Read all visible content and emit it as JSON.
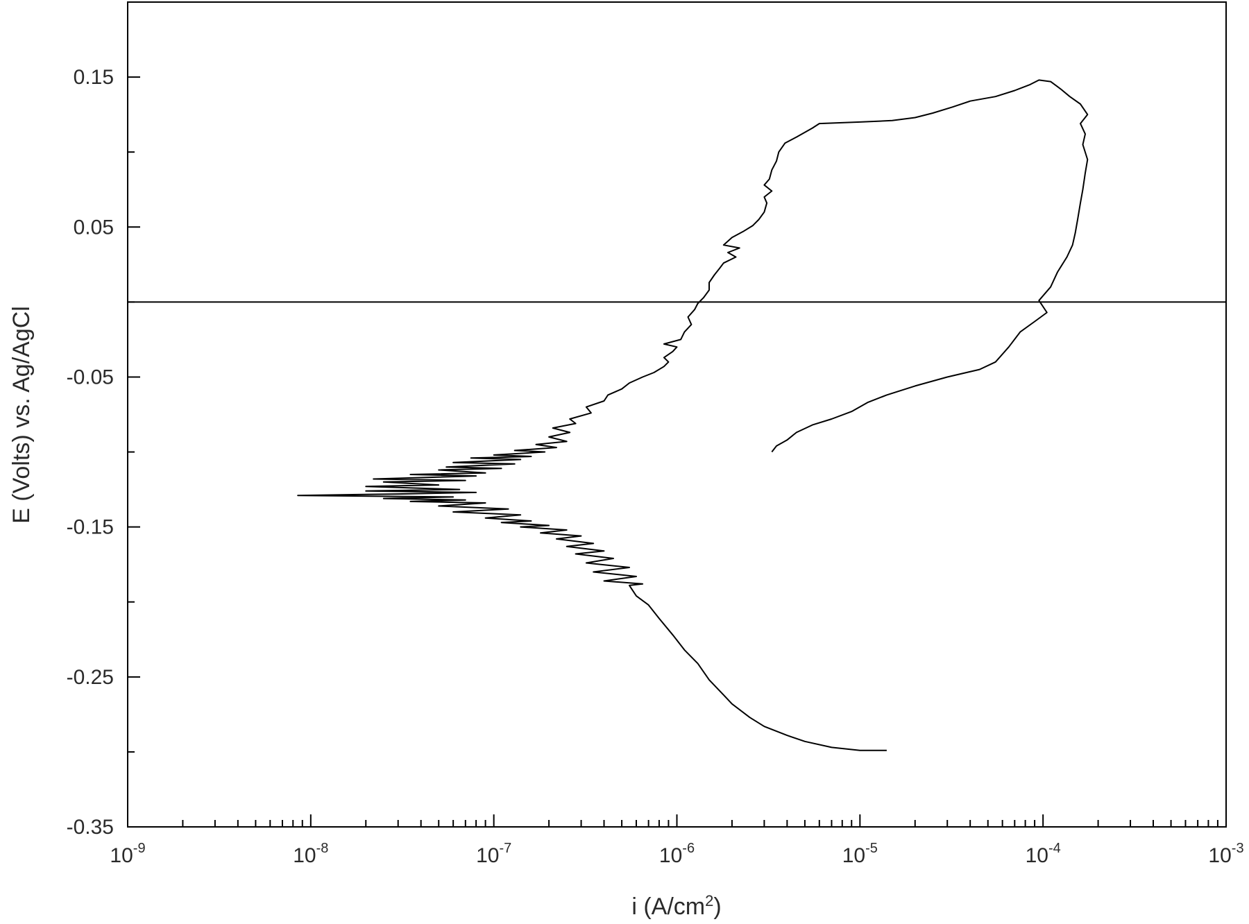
{
  "chart_data": {
    "type": "line",
    "title": "",
    "xlabel": "i (A/cm²)",
    "ylabel": "E (Volts) vs. Ag/AgCl",
    "x_scale": "log",
    "xlim": [
      1e-09,
      0.001
    ],
    "ylim": [
      -0.35,
      0.2
    ],
    "grid": false,
    "legend": "none",
    "x_tick_labels": [
      {
        "value": 1e-09,
        "base": "10",
        "exp": "-9"
      },
      {
        "value": 1e-08,
        "base": "10",
        "exp": "-8"
      },
      {
        "value": 1e-07,
        "base": "10",
        "exp": "-7"
      },
      {
        "value": 1e-06,
        "base": "10",
        "exp": "-6"
      },
      {
        "value": 1e-05,
        "base": "10",
        "exp": "-5"
      },
      {
        "value": 0.0001,
        "base": "10",
        "exp": "-4"
      },
      {
        "value": 0.001,
        "base": "10",
        "exp": "-3"
      }
    ],
    "y_tick_labels": [
      {
        "value": 0.15,
        "label": "0.15"
      },
      {
        "value": 0.05,
        "label": "0.05"
      },
      {
        "value": -0.05,
        "label": "-0.05"
      },
      {
        "value": -0.15,
        "label": "-0.15"
      },
      {
        "value": -0.25,
        "label": "-0.25"
      },
      {
        "value": -0.35,
        "label": "-0.35"
      }
    ],
    "y_minor_ticks": [
      0.1,
      0.0,
      -0.1,
      -0.2,
      -0.3
    ],
    "reference_lines": [
      {
        "axis": "y",
        "value": 0.0
      }
    ],
    "series": [
      {
        "points": [
          [
            1.4e-05,
            -0.299
          ],
          [
            1e-05,
            -0.299
          ],
          [
            7e-06,
            -0.297
          ],
          [
            5e-06,
            -0.293
          ],
          [
            4e-06,
            -0.289
          ],
          [
            3e-06,
            -0.283
          ],
          [
            2.5e-06,
            -0.277
          ],
          [
            2e-06,
            -0.268
          ],
          [
            1.8e-06,
            -0.262
          ],
          [
            1.5e-06,
            -0.252
          ],
          [
            1.3e-06,
            -0.241
          ],
          [
            1.1e-06,
            -0.232
          ],
          [
            9.5e-07,
            -0.222
          ],
          [
            8e-07,
            -0.211
          ],
          [
            7e-07,
            -0.202
          ],
          [
            6e-07,
            -0.196
          ],
          [
            5.5e-07,
            -0.189
          ],
          [
            6.5e-07,
            -0.188
          ],
          [
            4e-07,
            -0.186
          ],
          [
            6e-07,
            -0.183
          ],
          [
            3.5e-07,
            -0.18
          ],
          [
            5.5e-07,
            -0.177
          ],
          [
            3.2e-07,
            -0.174
          ],
          [
            4.5e-07,
            -0.171
          ],
          [
            2.8e-07,
            -0.168
          ],
          [
            4e-07,
            -0.166
          ],
          [
            2.5e-07,
            -0.163
          ],
          [
            3.5e-07,
            -0.161
          ],
          [
            2.2e-07,
            -0.158
          ],
          [
            3e-07,
            -0.156
          ],
          [
            1.8e-07,
            -0.154
          ],
          [
            2.5e-07,
            -0.152
          ],
          [
            1.4e-07,
            -0.15
          ],
          [
            2e-07,
            -0.149
          ],
          [
            1.1e-07,
            -0.147
          ],
          [
            1.6e-07,
            -0.146
          ],
          [
            9e-08,
            -0.144
          ],
          [
            1.4e-07,
            -0.142
          ],
          [
            6e-08,
            -0.14
          ],
          [
            1.2e-07,
            -0.138
          ],
          [
            5e-08,
            -0.136
          ],
          [
            9e-08,
            -0.134
          ],
          [
            3.5e-08,
            -0.133
          ],
          [
            7e-08,
            -0.132
          ],
          [
            2.5e-08,
            -0.131
          ],
          [
            6e-08,
            -0.13
          ],
          [
            8.5e-09,
            -0.129
          ],
          [
            3e-08,
            -0.128
          ],
          [
            8e-08,
            -0.127
          ],
          [
            2e-08,
            -0.126
          ],
          [
            6.5e-08,
            -0.125
          ],
          [
            2e-08,
            -0.123
          ],
          [
            5e-08,
            -0.122
          ],
          [
            2.5e-08,
            -0.12
          ],
          [
            7e-08,
            -0.119
          ],
          [
            2.2e-08,
            -0.118
          ],
          [
            8e-08,
            -0.116
          ],
          [
            3.5e-08,
            -0.115
          ],
          [
            9e-08,
            -0.114
          ],
          [
            5e-08,
            -0.112
          ],
          [
            1.1e-07,
            -0.111
          ],
          [
            5.5e-08,
            -0.11
          ],
          [
            1.3e-07,
            -0.108
          ],
          [
            6e-08,
            -0.107
          ],
          [
            1.4e-07,
            -0.105
          ],
          [
            7.5e-08,
            -0.104
          ],
          [
            1.6e-07,
            -0.103
          ],
          [
            1e-07,
            -0.102
          ],
          [
            1.9e-07,
            -0.1
          ],
          [
            1.3e-07,
            -0.099
          ],
          [
            2.2e-07,
            -0.097
          ],
          [
            1.7e-07,
            -0.095
          ],
          [
            2.5e-07,
            -0.093
          ],
          [
            2e-07,
            -0.09
          ],
          [
            2.6e-07,
            -0.087
          ],
          [
            2.1e-07,
            -0.084
          ],
          [
            2.8e-07,
            -0.081
          ],
          [
            2.6e-07,
            -0.078
          ],
          [
            3.4e-07,
            -0.074
          ],
          [
            3.2e-07,
            -0.07
          ],
          [
            4e-07,
            -0.066
          ],
          [
            4.2e-07,
            -0.062
          ],
          [
            5e-07,
            -0.058
          ],
          [
            5.5e-07,
            -0.054
          ],
          [
            6.5e-07,
            -0.05
          ],
          [
            7.5e-07,
            -0.047
          ],
          [
            8.5e-07,
            -0.043
          ],
          [
            9e-07,
            -0.04
          ],
          [
            8.5e-07,
            -0.037
          ],
          [
            9.5e-07,
            -0.033
          ],
          [
            1e-06,
            -0.03
          ],
          [
            8.5e-07,
            -0.028
          ],
          [
            1.05e-06,
            -0.025
          ],
          [
            1.1e-06,
            -0.02
          ],
          [
            1.2e-06,
            -0.015
          ],
          [
            1.15e-06,
            -0.01
          ],
          [
            1.25e-06,
            -0.005
          ],
          [
            1.3e-06,
            -0.001
          ],
          [
            1.4e-06,
            0.003
          ],
          [
            1.5e-06,
            0.008
          ],
          [
            1.5e-06,
            0.013
          ],
          [
            1.6e-06,
            0.018
          ],
          [
            1.7e-06,
            0.022
          ],
          [
            1.8e-06,
            0.026
          ],
          [
            2.1e-06,
            0.03
          ],
          [
            1.9e-06,
            0.033
          ],
          [
            2.2e-06,
            0.036
          ],
          [
            1.8e-06,
            0.038
          ],
          [
            2e-06,
            0.043
          ],
          [
            2.3e-06,
            0.047
          ],
          [
            2.6e-06,
            0.051
          ],
          [
            2.8e-06,
            0.055
          ],
          [
            3e-06,
            0.06
          ],
          [
            3.1e-06,
            0.066
          ],
          [
            3e-06,
            0.07
          ],
          [
            3.3e-06,
            0.074
          ],
          [
            3e-06,
            0.078
          ],
          [
            3.2e-06,
            0.082
          ],
          [
            3.3e-06,
            0.088
          ],
          [
            3.5e-06,
            0.094
          ],
          [
            3.6e-06,
            0.1
          ],
          [
            3.9e-06,
            0.106
          ],
          [
            4.5e-06,
            0.11
          ],
          [
            5.5e-06,
            0.116
          ],
          [
            6e-06,
            0.119
          ],
          [
            1e-05,
            0.12
          ],
          [
            1.5e-05,
            0.121
          ],
          [
            2e-05,
            0.123
          ],
          [
            2.5e-05,
            0.126
          ],
          [
            3.2e-05,
            0.13
          ],
          [
            4e-05,
            0.134
          ],
          [
            5.5e-05,
            0.137
          ],
          [
            7e-05,
            0.141
          ],
          [
            8.5e-05,
            0.145
          ],
          [
            9.5e-05,
            0.148
          ],
          [
            0.00011,
            0.147
          ],
          [
            0.000125,
            0.142
          ],
          [
            0.00014,
            0.137
          ],
          [
            0.00016,
            0.132
          ],
          [
            0.000175,
            0.125
          ],
          [
            0.00016,
            0.119
          ],
          [
            0.00017,
            0.112
          ],
          [
            0.000165,
            0.105
          ],
          [
            0.000175,
            0.095
          ],
          [
            0.00017,
            0.086
          ],
          [
            0.000165,
            0.075
          ],
          [
            0.00016,
            0.066
          ],
          [
            0.000155,
            0.056
          ],
          [
            0.00015,
            0.046
          ],
          [
            0.000145,
            0.038
          ],
          [
            0.000135,
            0.03
          ],
          [
            0.00012,
            0.02
          ],
          [
            0.00011,
            0.01
          ],
          [
            9.5e-05,
            0.001
          ],
          [
            0.000105,
            -0.007
          ],
          [
            9e-05,
            -0.013
          ],
          [
            7.5e-05,
            -0.02
          ],
          [
            6.5e-05,
            -0.03
          ],
          [
            5.5e-05,
            -0.04
          ],
          [
            4.5e-05,
            -0.045
          ],
          [
            3e-05,
            -0.05
          ],
          [
            2e-05,
            -0.056
          ],
          [
            1.4e-05,
            -0.062
          ],
          [
            1.1e-05,
            -0.067
          ],
          [
            9e-06,
            -0.073
          ],
          [
            7e-06,
            -0.078
          ],
          [
            5.5e-06,
            -0.082
          ],
          [
            4.5e-06,
            -0.087
          ],
          [
            4e-06,
            -0.092
          ],
          [
            3.5e-06,
            -0.096
          ],
          [
            3.3e-06,
            -0.1
          ]
        ]
      }
    ]
  }
}
